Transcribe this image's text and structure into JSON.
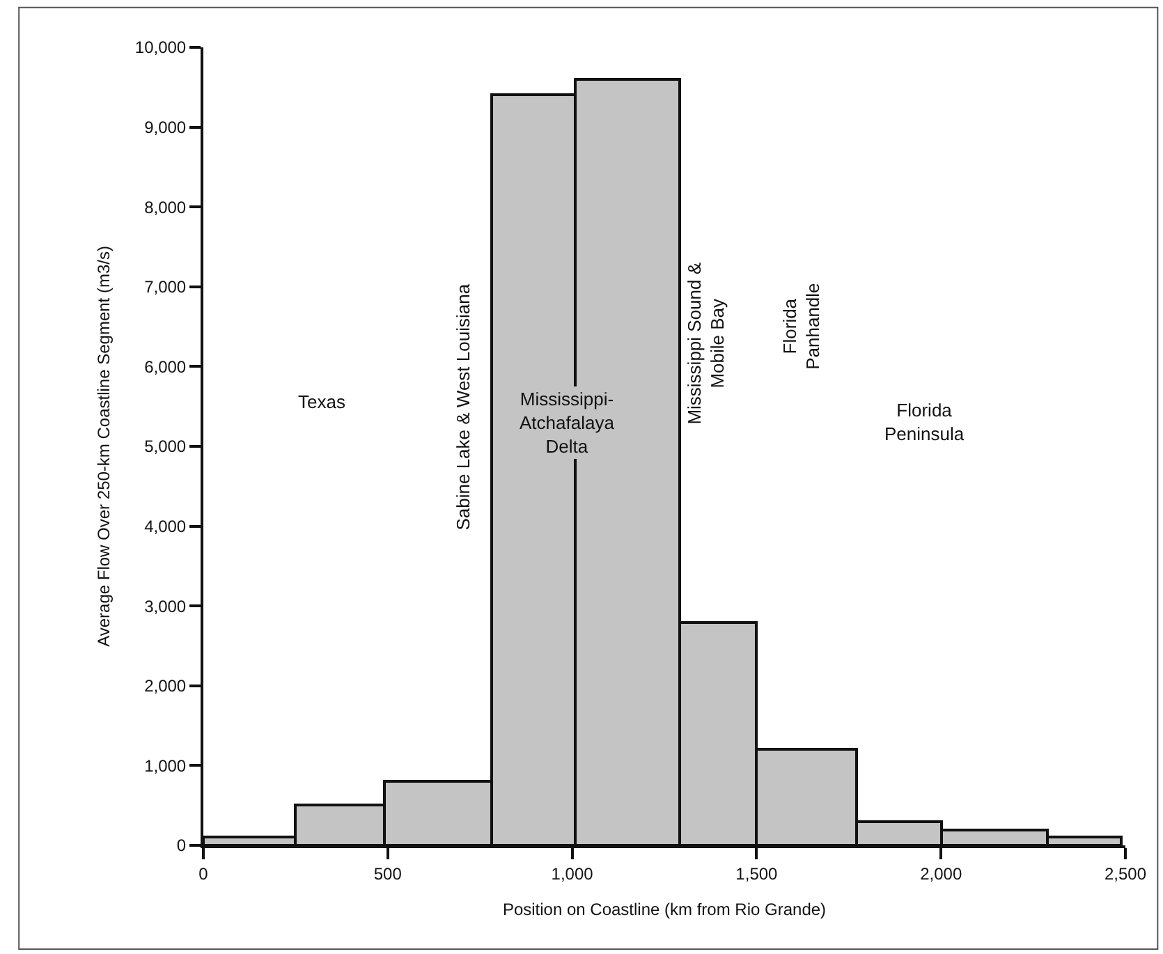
{
  "chart_data": {
    "type": "histogram",
    "xlabel": "Position on Coastline (km from Rio Grande)",
    "ylabel": "Average Flow Over 250-km Coastline Segment (m3/s)",
    "bins": [
      0,
      250,
      490,
      780,
      1010,
      1290,
      1500,
      1770,
      2000,
      2290,
      2490
    ],
    "values": [
      100,
      500,
      800,
      9400,
      9600,
      2800,
      1200,
      300,
      200,
      100
    ],
    "color": "#c4c4c4",
    "xlim": [
      0,
      2500
    ],
    "xticks": [
      {
        "value": 0,
        "label": "0"
      },
      {
        "value": 500,
        "label": "500"
      },
      {
        "value": 1000,
        "label": "1,000"
      },
      {
        "value": 1500,
        "label": "1,500"
      },
      {
        "value": 2000,
        "label": "2,000"
      },
      {
        "value": 2500,
        "label": "2,500"
      }
    ],
    "ylim": [
      0,
      10000
    ],
    "yticks": [
      {
        "value": 0,
        "label": "0"
      },
      {
        "value": 1000,
        "label": "1,000"
      },
      {
        "value": 2000,
        "label": "2,000"
      },
      {
        "value": 3000,
        "label": "3,000"
      },
      {
        "value": 4000,
        "label": "4,000"
      },
      {
        "value": 5000,
        "label": "5,000"
      },
      {
        "value": 6000,
        "label": "6,000"
      },
      {
        "value": 7000,
        "label": "7,000"
      },
      {
        "value": 8000,
        "label": "8,000"
      },
      {
        "value": 9000,
        "label": "9,000"
      },
      {
        "value": 10000,
        "label": "10,000"
      }
    ],
    "annotations": [
      "Texas",
      "Sabine Lake & West Louisiana",
      "Mississippi-\nAtchafalaya\nDelta",
      "Mississippi Sound &\nMobile Bay",
      "Florida\nPanhandle",
      "Florida\nPeninsula"
    ]
  }
}
